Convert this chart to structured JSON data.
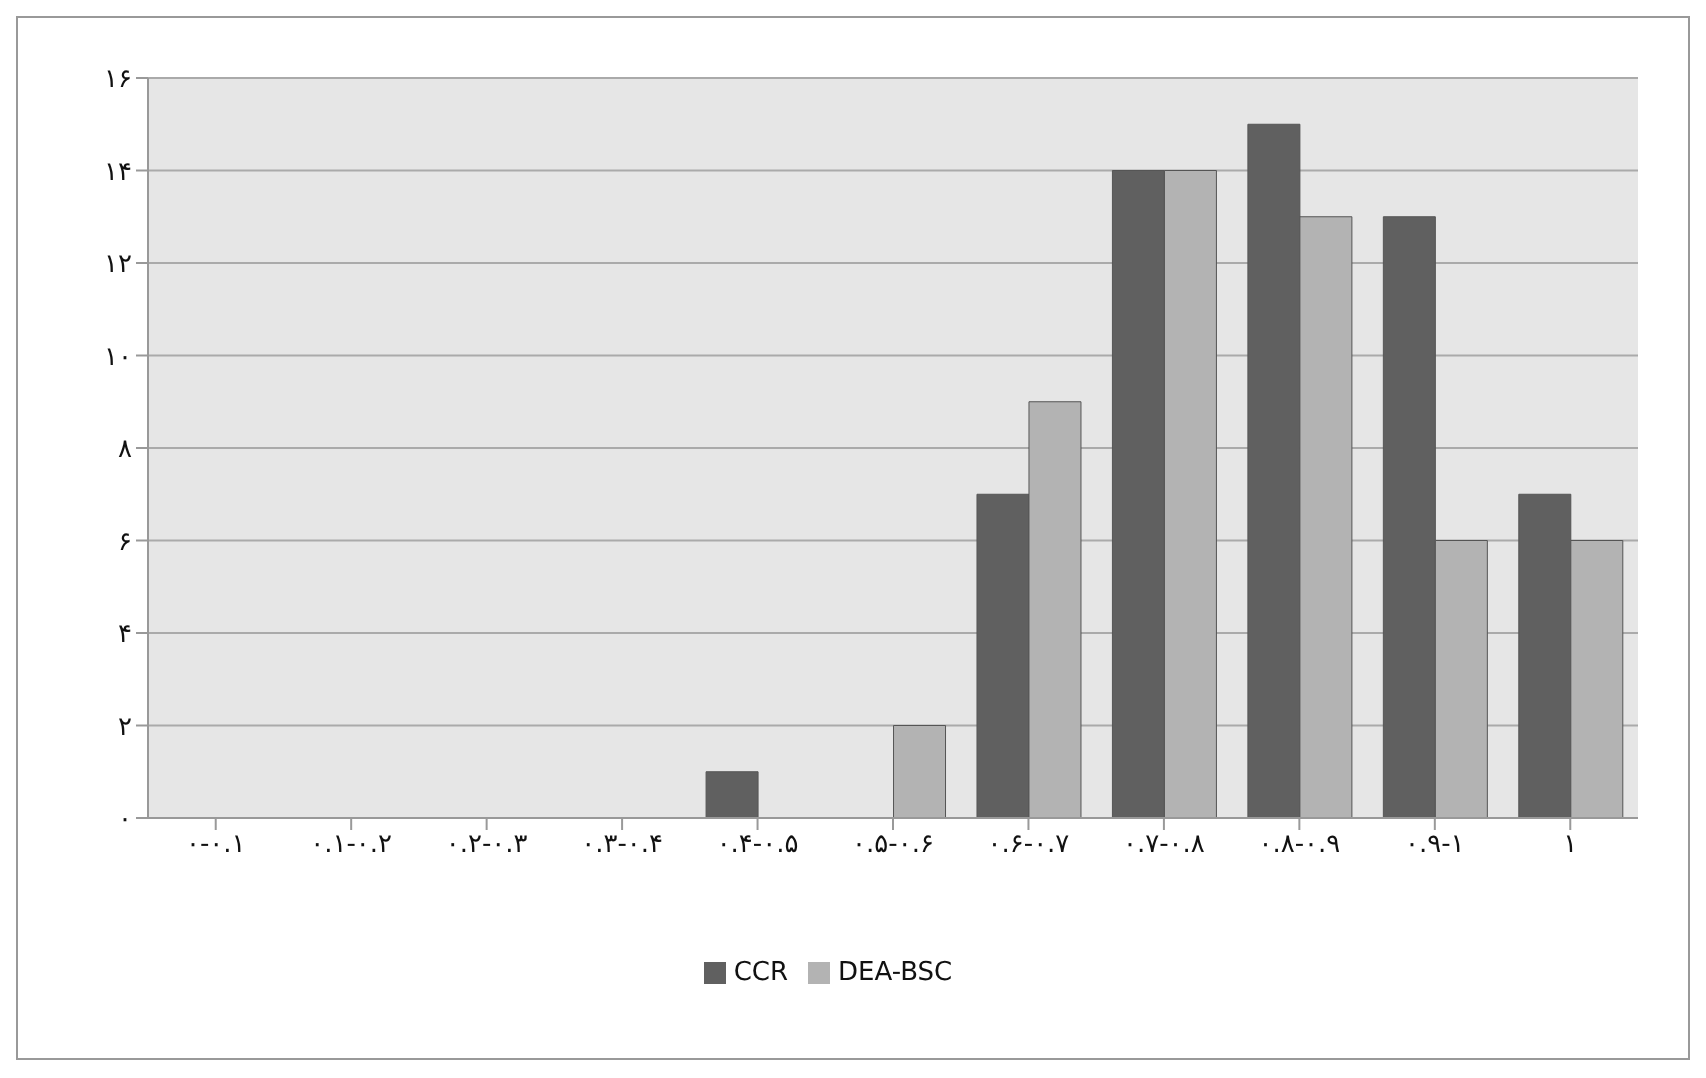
{
  "chart_data": {
    "type": "bar",
    "categories": [
      "۰-۰.۱",
      "۰.۱-۰.۲",
      "۰.۲-۰.۳",
      "۰.۳-۰.۴",
      "۰.۴-۰.۵",
      "۰.۵-۰.۶",
      "۰.۶-۰.۷",
      "۰.۷-۰.۸",
      "۰.۸-۰.۹",
      "۰.۹-۱",
      "۱"
    ],
    "series": [
      {
        "name": "CCR",
        "color": "#606060",
        "values": [
          0,
          0,
          0,
          0,
          1,
          0,
          7,
          14,
          15,
          13,
          7
        ]
      },
      {
        "name": "DEA-BSC",
        "color": "#b3b3b3",
        "values": [
          0,
          0,
          0,
          0,
          0,
          2,
          9,
          14,
          13,
          6,
          6
        ]
      }
    ],
    "ylim": [
      0,
      16
    ],
    "yticks": [
      {
        "value": 0,
        "label": "۰"
      },
      {
        "value": 2,
        "label": "۲"
      },
      {
        "value": 4,
        "label": "۴"
      },
      {
        "value": 6,
        "label": "۶"
      },
      {
        "value": 8,
        "label": "۸"
      },
      {
        "value": 10,
        "label": "۱۰"
      },
      {
        "value": 12,
        "label": "۱۲"
      },
      {
        "value": 14,
        "label": "۱۴"
      },
      {
        "value": 16,
        "label": "۱۶"
      }
    ],
    "grid": "y",
    "legend": "bottom"
  }
}
